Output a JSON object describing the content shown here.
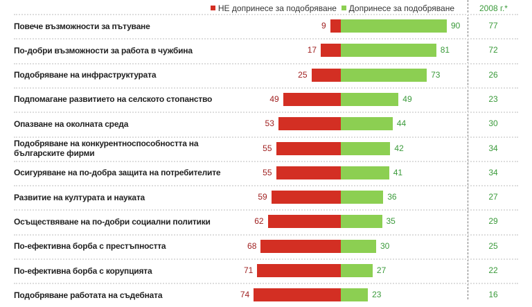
{
  "chart_data": {
    "type": "bar",
    "legend": {
      "not_contributed": "НЕ допринесе за подобряване",
      "contributed": "Допринесе за подобряване",
      "year_header": "2008 г.*"
    },
    "colors": {
      "not_contributed": "#d32f23",
      "contributed": "#8ccf52"
    },
    "categories": [
      "Повече възможности за пътуване",
      "По-добри възможности за работа в чужбина",
      "Подобряване на инфраструктурата",
      "Подпомагане развитието на селското стопанство",
      "Опазване на околната среда",
      "Подобряване на конкурентноспособността на българските фирми",
      "Осигуряване на по-добра защита на потребителите",
      "Развитие на културата и науката",
      "Осъществяване на по-добри социални политики",
      "По-ефективна борба с престъпността",
      "По-ефективна борба с корупцията",
      "Подобряване работата на съдебната"
    ],
    "series": [
      {
        "name": "НЕ допринесе за подобряване",
        "values": [
          9,
          17,
          25,
          49,
          53,
          55,
          55,
          59,
          62,
          68,
          71,
          74
        ]
      },
      {
        "name": "Допринесе за подобряване",
        "values": [
          90,
          81,
          73,
          49,
          44,
          42,
          41,
          36,
          35,
          30,
          27,
          23
        ]
      },
      {
        "name": "2008 г.*",
        "values": [
          77,
          72,
          26,
          23,
          30,
          34,
          34,
          27,
          29,
          25,
          22,
          16
        ]
      }
    ]
  }
}
